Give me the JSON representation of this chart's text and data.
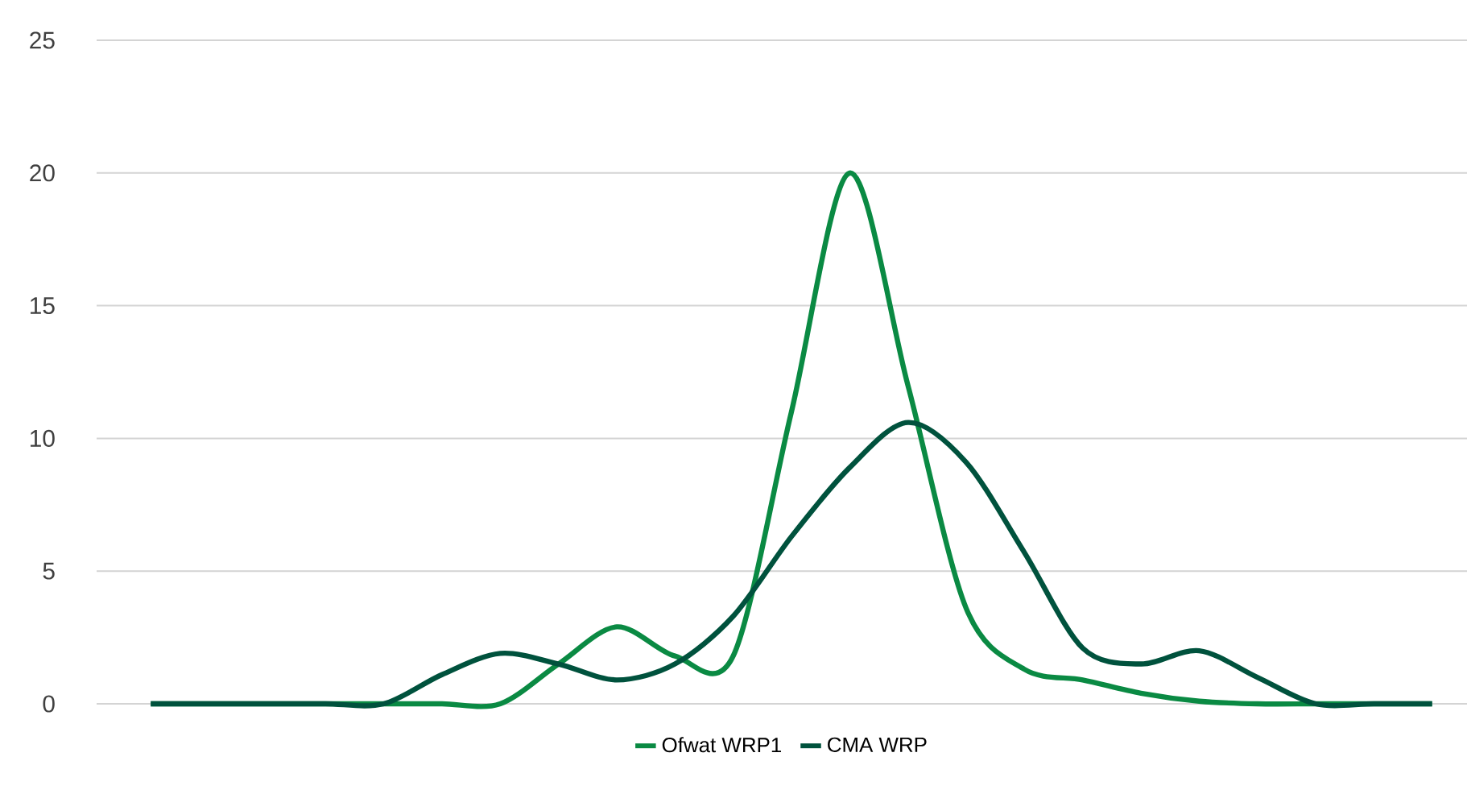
{
  "chart_data": {
    "type": "line",
    "categories": [
      null,
      null,
      null,
      null,
      null,
      null,
      null,
      null,
      null,
      null,
      null,
      null,
      null,
      null,
      null,
      null,
      null,
      null,
      null,
      null,
      null,
      null,
      null
    ],
    "series": [
      {
        "name": "Ofwat WRP1",
        "color": "#0a8a43",
        "values": [
          0,
          0,
          0,
          0,
          0,
          0,
          0,
          1.5,
          2.9,
          1.8,
          1.8,
          11,
          20,
          12,
          3.6,
          1.3,
          0.9,
          0.4,
          0.1,
          0,
          0,
          0,
          0
        ]
      },
      {
        "name": "CMA WRP",
        "color": "#00523d",
        "values": [
          0,
          0,
          0,
          0,
          0,
          1.1,
          1.9,
          1.5,
          0.9,
          1.5,
          3.3,
          6.3,
          8.9,
          10.6,
          9.1,
          5.7,
          2.1,
          1.5,
          2,
          1,
          0,
          0,
          0
        ]
      }
    ],
    "ylim": [
      0,
      25
    ],
    "yticks": [
      0,
      5,
      10,
      15,
      20,
      25
    ],
    "grid": "y",
    "legend": "bottom",
    "tick_labels": "y"
  }
}
